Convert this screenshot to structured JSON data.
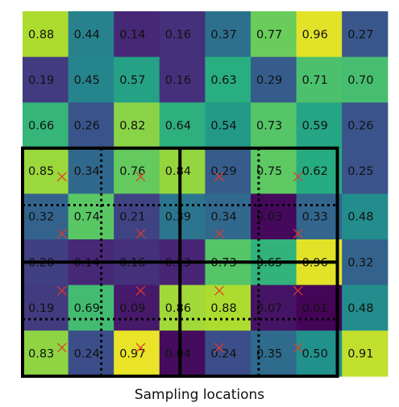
{
  "grid": {
    "values": [
      [
        "0.88",
        "0.44",
        "0.14",
        "0.16",
        "0.37",
        "0.77",
        "0.96",
        "0.27"
      ],
      [
        "0.19",
        "0.45",
        "0.57",
        "0.16",
        "0.63",
        "0.29",
        "0.71",
        "0.70"
      ],
      [
        "0.66",
        "0.26",
        "0.82",
        "0.64",
        "0.54",
        "0.73",
        "0.59",
        "0.26"
      ],
      [
        "0.85",
        "0.34",
        "0.76",
        "0.84",
        "0.29",
        "0.75",
        "0.62",
        "0.25"
      ],
      [
        "0.32",
        "0.74",
        "0.21",
        "0.39",
        "0.34",
        "0.03",
        "0.33",
        "0.48"
      ],
      [
        "0.20",
        "0.14",
        "0.16",
        "0.13",
        "0.73",
        "0.65",
        "0.96",
        "0.32"
      ],
      [
        "0.19",
        "0.69",
        "0.09",
        "0.86",
        "0.88",
        "0.07",
        "0.01",
        "0.48"
      ],
      [
        "0.83",
        "0.24",
        "0.97",
        "0.04",
        "0.24",
        "0.35",
        "0.50",
        "0.91"
      ]
    ],
    "colormap": "viridis",
    "roi": {
      "rows": [
        3,
        7
      ],
      "cols": [
        0,
        6
      ],
      "bins": 2
    },
    "sampling_points": [
      [
        0.25,
        0.25
      ],
      [
        0.25,
        0.75
      ],
      [
        0.75,
        0.25
      ],
      [
        0.75,
        0.75
      ]
    ],
    "marker_color": "#e23a2a",
    "line_color": "#000000"
  },
  "caption": "Sampling locations"
}
